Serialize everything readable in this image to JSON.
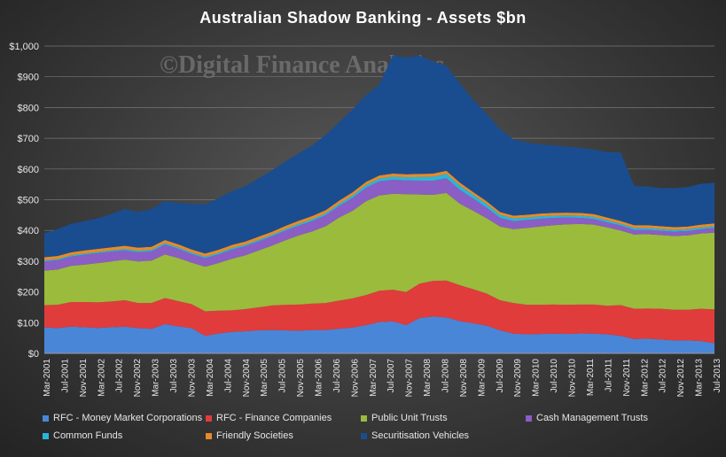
{
  "watermark": "©Digital Finance Analytics",
  "chart_data": {
    "type": "area",
    "stacked": true,
    "title": "Australian  Shadow  Banking  - Assets $bn",
    "ylim": [
      0,
      1000
    ],
    "yticks": [
      "$0",
      "$100",
      "$200",
      "$300",
      "$400",
      "$500",
      "$600",
      "$700",
      "$800",
      "$900",
      "$1,000"
    ],
    "grid": true,
    "legend_position": "bottom",
    "x_labels": [
      "Mar-2001",
      "Jul-2001",
      "Nov-2001",
      "Mar-2002",
      "Jul-2002",
      "Nov-2002",
      "Mar-2003",
      "Jul-2003",
      "Nov-2003",
      "Mar-2004",
      "Jul-2004",
      "Nov-2004",
      "Mar-2005",
      "Jul-2005",
      "Nov-2005",
      "Mar-2006",
      "Jul-2006",
      "Nov-2006",
      "Mar-2007",
      "Jul-2007",
      "Nov-2007",
      "Mar-2008",
      "Jul-2008",
      "Nov-2008",
      "Mar-2009",
      "Jul-2009",
      "Nov-2009",
      "Mar-2010",
      "Jul-2010",
      "Nov-2010",
      "Mar-2011",
      "Jul-2011",
      "Nov-2011",
      "Mar-2012",
      "Jul-2012",
      "Nov-2012",
      "Mar-2013",
      "Jul-2013"
    ],
    "x": [
      "Mar-2001",
      "Jun-2001",
      "Sep-2001",
      "Dec-2001",
      "Mar-2002",
      "Jun-2002",
      "Sep-2002",
      "Dec-2002",
      "Mar-2003",
      "Jun-2003",
      "Sep-2003",
      "Dec-2003",
      "Mar-2004",
      "Jun-2004",
      "Sep-2004",
      "Dec-2004",
      "Mar-2005",
      "Jun-2005",
      "Sep-2005",
      "Dec-2005",
      "Mar-2006",
      "Jun-2006",
      "Sep-2006",
      "Dec-2006",
      "Mar-2007",
      "Jun-2007",
      "Sep-2007",
      "Dec-2007",
      "Mar-2008",
      "Jun-2008",
      "Sep-2008",
      "Dec-2008",
      "Mar-2009",
      "Jun-2009",
      "Sep-2009",
      "Dec-2009",
      "Mar-2010",
      "Jun-2010",
      "Sep-2010",
      "Dec-2010",
      "Mar-2011",
      "Jun-2011",
      "Sep-2011",
      "Dec-2011",
      "Mar-2012",
      "Jun-2012",
      "Sep-2012",
      "Dec-2012",
      "Mar-2013",
      "Jun-2013",
      "Sep-2013"
    ],
    "series": [
      {
        "name": "RFC - Money Market Corporations",
        "color": "#4a86d8",
        "values": [
          85,
          82,
          87,
          85,
          83,
          85,
          87,
          82,
          80,
          95,
          88,
          82,
          57,
          65,
          70,
          72,
          75,
          76,
          75,
          74,
          76,
          76,
          80,
          84,
          92,
          102,
          104,
          92,
          115,
          120,
          117,
          105,
          98,
          90,
          75,
          64,
          62,
          63,
          64,
          63,
          65,
          64,
          62,
          57,
          47,
          48,
          45,
          42,
          42,
          40,
          33
        ]
      },
      {
        "name": "RFC - Finance Companies",
        "color": "#e03c3c",
        "values": [
          72,
          76,
          80,
          82,
          83,
          84,
          86,
          82,
          84,
          85,
          82,
          78,
          80,
          74,
          70,
          72,
          75,
          80,
          83,
          85,
          86,
          88,
          92,
          95,
          98,
          102,
          103,
          108,
          112,
          116,
          120,
          117,
          111,
          105,
          98,
          100,
          96,
          95,
          95,
          95,
          94,
          95,
          93,
          100,
          98,
          98,
          100,
          100,
          100,
          105,
          110
        ]
      },
      {
        "name": "Public Unit Trusts",
        "color": "#9bbb3c",
        "values": [
          112,
          115,
          118,
          122,
          128,
          130,
          132,
          135,
          138,
          142,
          140,
          135,
          145,
          155,
          168,
          175,
          185,
          195,
          210,
          225,
          235,
          250,
          270,
          285,
          305,
          310,
          312,
          318,
          290,
          280,
          285,
          265,
          255,
          245,
          240,
          240,
          250,
          255,
          258,
          262,
          262,
          260,
          255,
          243,
          242,
          242,
          240,
          240,
          242,
          245,
          250
        ]
      },
      {
        "name": "Cash Management Trusts",
        "color": "#8a5ec4",
        "values": [
          30,
          30,
          30,
          32,
          32,
          32,
          30,
          30,
          30,
          32,
          30,
          28,
          28,
          28,
          30,
          30,
          30,
          30,
          32,
          32,
          34,
          36,
          38,
          42,
          44,
          46,
          46,
          45,
          45,
          46,
          48,
          45,
          40,
          34,
          28,
          26,
          26,
          25,
          24,
          22,
          20,
          18,
          16,
          16,
          15,
          14,
          14,
          14,
          14,
          14,
          15
        ]
      },
      {
        "name": "Common Funds",
        "color": "#29b6d8",
        "values": [
          4,
          4,
          4,
          4,
          4,
          4,
          5,
          5,
          5,
          5,
          5,
          5,
          5,
          5,
          5,
          5,
          5,
          5,
          5,
          6,
          6,
          6,
          7,
          8,
          9,
          9,
          10,
          10,
          12,
          13,
          14,
          14,
          12,
          12,
          10,
          9,
          8,
          8,
          7,
          7,
          7,
          7,
          7,
          6,
          6,
          6,
          6,
          6,
          6,
          6,
          6
        ]
      },
      {
        "name": "Friendly Societies",
        "color": "#e88a28",
        "values": [
          10,
          10,
          10,
          10,
          10,
          10,
          10,
          10,
          10,
          10,
          10,
          10,
          10,
          10,
          10,
          10,
          10,
          10,
          10,
          10,
          10,
          10,
          10,
          10,
          10,
          10,
          10,
          10,
          10,
          10,
          10,
          10,
          9,
          9,
          9,
          9,
          9,
          9,
          9,
          9,
          9,
          9,
          9,
          9,
          9,
          9,
          9,
          9,
          9,
          9,
          9
        ]
      },
      {
        "name": "Securitisation Vehicles",
        "color": "#1a4d8f",
        "values": [
          78,
          87,
          93,
          95,
          100,
          108,
          120,
          116,
          123,
          126,
          135,
          148,
          160,
          168,
          175,
          180,
          190,
          200,
          210,
          220,
          230,
          245,
          255,
          270,
          282,
          296,
          385,
          380,
          385,
          365,
          342,
          323,
          300,
          285,
          270,
          248,
          235,
          225,
          220,
          215,
          212,
          210,
          213,
          223,
          128,
          126,
          124,
          127,
          128,
          133,
          132
        ]
      }
    ]
  }
}
